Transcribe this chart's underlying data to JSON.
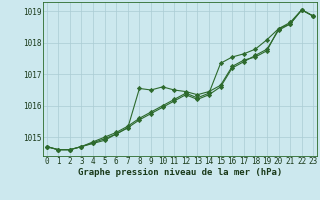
{
  "xlabel": "Graphe pression niveau de la mer (hPa)",
  "bg_color": "#cce8ee",
  "grid_color": "#aaccd4",
  "line_color": "#2d6a2d",
  "marker_color": "#2d6a2d",
  "hours": [
    0,
    1,
    2,
    3,
    4,
    5,
    6,
    7,
    8,
    9,
    10,
    11,
    12,
    13,
    14,
    15,
    16,
    17,
    18,
    19,
    20,
    21,
    22,
    23
  ],
  "series1": [
    1014.7,
    1014.6,
    1014.6,
    1014.7,
    1014.8,
    1014.9,
    1015.1,
    1015.3,
    1016.55,
    1016.5,
    1016.6,
    1016.5,
    1016.45,
    1016.35,
    1016.45,
    1016.65,
    1017.25,
    1017.45,
    1017.55,
    1017.75,
    1018.45,
    1018.6,
    1019.05,
    1018.85
  ],
  "series2": [
    1014.7,
    1014.6,
    1014.6,
    1014.7,
    1014.85,
    1015.0,
    1015.15,
    1015.35,
    1015.6,
    1015.8,
    1016.0,
    1016.2,
    1016.4,
    1016.25,
    1016.4,
    1017.35,
    1017.55,
    1017.65,
    1017.8,
    1018.1,
    1018.45,
    1018.65,
    1019.05,
    1018.85
  ],
  "series3": [
    1014.7,
    1014.6,
    1014.6,
    1014.7,
    1014.82,
    1014.95,
    1015.1,
    1015.3,
    1015.55,
    1015.75,
    1015.95,
    1016.15,
    1016.35,
    1016.2,
    1016.35,
    1016.6,
    1017.2,
    1017.4,
    1017.6,
    1017.8,
    1018.4,
    1018.6,
    1019.05,
    1018.85
  ],
  "ylim": [
    1014.4,
    1019.3
  ],
  "yticks": [
    1015,
    1016,
    1017,
    1018,
    1019
  ],
  "xticks": [
    0,
    1,
    2,
    3,
    4,
    5,
    6,
    7,
    8,
    9,
    10,
    11,
    12,
    13,
    14,
    15,
    16,
    17,
    18,
    19,
    20,
    21,
    22,
    23
  ],
  "tick_label_fontsize": 5.5,
  "xlabel_fontsize": 6.5
}
